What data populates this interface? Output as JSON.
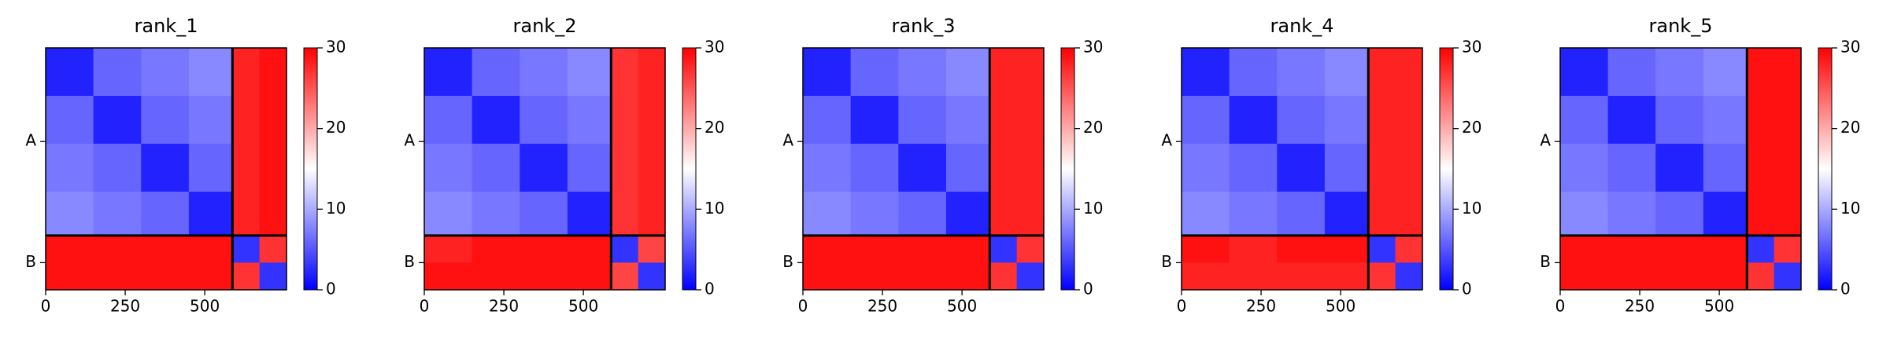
{
  "chart_data": [
    {
      "type": "heatmap",
      "title": "rank_1",
      "x_edges": [
        0,
        150,
        300,
        450,
        587,
        672,
        757
      ],
      "y_edges": [
        0,
        150,
        300,
        450,
        587,
        672,
        757
      ],
      "z": [
        [
          2,
          6,
          7,
          8,
          28,
          29
        ],
        [
          6,
          2,
          6,
          7,
          28,
          29
        ],
        [
          7,
          6,
          2,
          6,
          28,
          29
        ],
        [
          8,
          7,
          6,
          2,
          28,
          29
        ],
        [
          29,
          29,
          29,
          29,
          3,
          27
        ],
        [
          29,
          29,
          29,
          29,
          27,
          3
        ]
      ],
      "xlim": [
        0,
        757
      ],
      "ylim": [
        757,
        0
      ],
      "xticks": [
        0,
        250,
        500
      ],
      "yticks": [
        {
          "value": 293,
          "label": "A"
        },
        {
          "value": 672,
          "label": "B"
        }
      ],
      "dividers": [
        587
      ],
      "colormap": [
        "#0000ff",
        "#ffffff",
        "#ff0000"
      ],
      "clim": [
        0,
        30
      ],
      "cticks": [
        0,
        10,
        20,
        30
      ]
    },
    {
      "type": "heatmap",
      "title": "rank_2",
      "x_edges": [
        0,
        150,
        300,
        450,
        587,
        672,
        757
      ],
      "y_edges": [
        0,
        150,
        300,
        450,
        587,
        672,
        757
      ],
      "z": [
        [
          2,
          6,
          7,
          8,
          27,
          28
        ],
        [
          6,
          2,
          6,
          7,
          27,
          28
        ],
        [
          7,
          6,
          2,
          6,
          27,
          28
        ],
        [
          8,
          7,
          6,
          2,
          27,
          28
        ],
        [
          28,
          29,
          29,
          29,
          3,
          26
        ],
        [
          29,
          29,
          29,
          29,
          26,
          3
        ]
      ],
      "xlim": [
        0,
        757
      ],
      "ylim": [
        757,
        0
      ],
      "xticks": [
        0,
        250,
        500
      ],
      "yticks": [
        {
          "value": 293,
          "label": "A"
        },
        {
          "value": 672,
          "label": "B"
        }
      ],
      "dividers": [
        587
      ],
      "colormap": [
        "#0000ff",
        "#ffffff",
        "#ff0000"
      ],
      "clim": [
        0,
        30
      ],
      "cticks": [
        0,
        10,
        20,
        30
      ]
    },
    {
      "type": "heatmap",
      "title": "rank_3",
      "x_edges": [
        0,
        150,
        300,
        450,
        587,
        672,
        757
      ],
      "y_edges": [
        0,
        150,
        300,
        450,
        587,
        672,
        757
      ],
      "z": [
        [
          2,
          6,
          7,
          8,
          28,
          28
        ],
        [
          6,
          2,
          6,
          7,
          28,
          28
        ],
        [
          7,
          6,
          2,
          6,
          28,
          28
        ],
        [
          8,
          7,
          6,
          2,
          28,
          28
        ],
        [
          29,
          29,
          29,
          29,
          3,
          27
        ],
        [
          29,
          29,
          29,
          29,
          27,
          3
        ]
      ],
      "xlim": [
        0,
        757
      ],
      "ylim": [
        757,
        0
      ],
      "xticks": [
        0,
        250,
        500
      ],
      "yticks": [
        {
          "value": 293,
          "label": "A"
        },
        {
          "value": 672,
          "label": "B"
        }
      ],
      "dividers": [
        587
      ],
      "colormap": [
        "#0000ff",
        "#ffffff",
        "#ff0000"
      ],
      "clim": [
        0,
        30
      ],
      "cticks": [
        0,
        10,
        20,
        30
      ]
    },
    {
      "type": "heatmap",
      "title": "rank_4",
      "x_edges": [
        0,
        150,
        300,
        450,
        587,
        672,
        757
      ],
      "y_edges": [
        0,
        150,
        300,
        450,
        587,
        672,
        757
      ],
      "z": [
        [
          2,
          6,
          7,
          8,
          28,
          28
        ],
        [
          6,
          2,
          6,
          7,
          28,
          28
        ],
        [
          7,
          6,
          2,
          6,
          28,
          28
        ],
        [
          8,
          7,
          6,
          2,
          28,
          28
        ],
        [
          29,
          28,
          29,
          29,
          3,
          27
        ],
        [
          28,
          28,
          28,
          28,
          27,
          3
        ]
      ],
      "xlim": [
        0,
        757
      ],
      "ylim": [
        757,
        0
      ],
      "xticks": [
        0,
        250,
        500
      ],
      "yticks": [
        {
          "value": 293,
          "label": "A"
        },
        {
          "value": 672,
          "label": "B"
        }
      ],
      "dividers": [
        587
      ],
      "colormap": [
        "#0000ff",
        "#ffffff",
        "#ff0000"
      ],
      "clim": [
        0,
        30
      ],
      "cticks": [
        0,
        10,
        20,
        30
      ]
    },
    {
      "type": "heatmap",
      "title": "rank_5",
      "x_edges": [
        0,
        150,
        300,
        450,
        587,
        672,
        757
      ],
      "y_edges": [
        0,
        150,
        300,
        450,
        587,
        672,
        757
      ],
      "z": [
        [
          2,
          6,
          7,
          8,
          29,
          29
        ],
        [
          6,
          2,
          6,
          7,
          29,
          29
        ],
        [
          7,
          6,
          2,
          6,
          29,
          29
        ],
        [
          8,
          7,
          6,
          2,
          29,
          29
        ],
        [
          29,
          29,
          29,
          29,
          3,
          27
        ],
        [
          29,
          29,
          29,
          29,
          27,
          3
        ]
      ],
      "xlim": [
        0,
        757
      ],
      "ylim": [
        757,
        0
      ],
      "xticks": [
        0,
        250,
        500
      ],
      "yticks": [
        {
          "value": 293,
          "label": "A"
        },
        {
          "value": 672,
          "label": "B"
        }
      ],
      "dividers": [
        587
      ],
      "colormap": [
        "#0000ff",
        "#ffffff",
        "#ff0000"
      ],
      "clim": [
        0,
        30
      ],
      "cticks": [
        0,
        10,
        20,
        30
      ]
    }
  ]
}
